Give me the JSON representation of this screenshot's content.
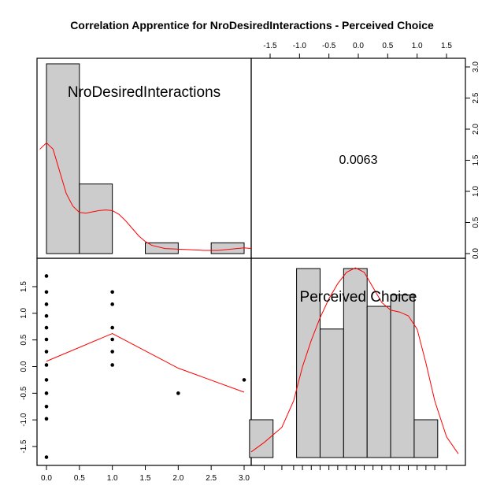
{
  "chart_data": {
    "type": "scatter-matrix",
    "title": "Correlation Apprentice for NroDesiredInteractions - Perceived Choice",
    "variables": [
      "NroDesiredInteractions",
      "Perceived Choice"
    ],
    "correlation": "0.0063",
    "x_ticks": [
      "0.0",
      "0.5",
      "1.0",
      "1.5",
      "2.0",
      "2.5",
      "3.0"
    ],
    "y_ticks": [
      "-1.5",
      "-1.0",
      "-0.5",
      "0.0",
      "0.5",
      "1.0",
      "1.5"
    ],
    "right_ticks": [
      "0.0",
      "0.5",
      "1.0",
      "1.5",
      "2.0",
      "2.5",
      "3.0"
    ],
    "top_ticks": [
      "-1.5",
      "-1.0",
      "-0.5",
      "0.0",
      "0.5",
      "1.0",
      "1.5"
    ],
    "colors": {
      "bar": "#cccccc",
      "smooth": "#ff0000",
      "points": "#000000"
    },
    "hist_nro": {
      "bin_edges": [
        0,
        0.5,
        1,
        1.5,
        2,
        2.5,
        3
      ],
      "counts": [
        3,
        1.1,
        0,
        0.17,
        0,
        0.17
      ],
      "density": [
        [
          -0.1,
          1.65
        ],
        [
          0,
          1.75
        ],
        [
          0.1,
          1.65
        ],
        [
          0.2,
          1.3
        ],
        [
          0.3,
          0.95
        ],
        [
          0.4,
          0.75
        ],
        [
          0.5,
          0.65
        ],
        [
          0.6,
          0.64
        ],
        [
          0.7,
          0.66
        ],
        [
          0.8,
          0.68
        ],
        [
          0.9,
          0.69
        ],
        [
          1.0,
          0.68
        ],
        [
          1.1,
          0.62
        ],
        [
          1.2,
          0.52
        ],
        [
          1.3,
          0.4
        ],
        [
          1.4,
          0.28
        ],
        [
          1.5,
          0.19
        ],
        [
          1.6,
          0.13
        ],
        [
          1.8,
          0.08
        ],
        [
          2.0,
          0.07
        ],
        [
          2.2,
          0.06
        ],
        [
          2.4,
          0.05
        ],
        [
          2.6,
          0.05
        ],
        [
          2.8,
          0.07
        ],
        [
          3.0,
          0.09
        ],
        [
          3.15,
          0.08
        ]
      ]
    },
    "hist_pc": {
      "bin_edges": [
        -1.85,
        -1.45,
        -1.05,
        -0.65,
        -0.25,
        0.15,
        0.55,
        0.95,
        1.35
      ],
      "counts": [
        1,
        0,
        5,
        3.4,
        5,
        4,
        4.3,
        1
      ],
      "density": [
        [
          -1.9,
          0.15
        ],
        [
          -1.6,
          0.4
        ],
        [
          -1.3,
          0.8
        ],
        [
          -1.1,
          1.5
        ],
        [
          -0.95,
          2.4
        ],
        [
          -0.8,
          3.1
        ],
        [
          -0.65,
          3.7
        ],
        [
          -0.5,
          4.2
        ],
        [
          -0.35,
          4.6
        ],
        [
          -0.2,
          4.9
        ],
        [
          -0.05,
          5.02
        ],
        [
          0.1,
          4.9
        ],
        [
          0.25,
          4.5
        ],
        [
          0.4,
          4.1
        ],
        [
          0.55,
          3.9
        ],
        [
          0.7,
          3.85
        ],
        [
          0.85,
          3.75
        ],
        [
          1.0,
          3.4
        ],
        [
          1.15,
          2.5
        ],
        [
          1.3,
          1.5
        ],
        [
          1.5,
          0.55
        ],
        [
          1.7,
          0.1
        ]
      ]
    },
    "scatter_points": [
      [
        0,
        1.7
      ],
      [
        0,
        1.4
      ],
      [
        0,
        1.17
      ],
      [
        0,
        0.95
      ],
      [
        0,
        0.73
      ],
      [
        0,
        0.51
      ],
      [
        0,
        0.28
      ],
      [
        0,
        0.03
      ],
      [
        0,
        -0.25
      ],
      [
        0,
        -0.5
      ],
      [
        0,
        -0.75
      ],
      [
        0,
        -0.98
      ],
      [
        0,
        -1.7
      ],
      [
        1,
        1.4
      ],
      [
        1,
        1.17
      ],
      [
        1,
        0.73
      ],
      [
        1,
        0.51
      ],
      [
        1,
        0.28
      ],
      [
        1,
        0.03
      ],
      [
        2,
        -0.5
      ],
      [
        3,
        -0.25
      ]
    ],
    "scatter_smooth": [
      [
        0,
        0.1
      ],
      [
        1,
        0.62
      ],
      [
        2,
        -0.03
      ],
      [
        3,
        -0.48
      ]
    ]
  }
}
